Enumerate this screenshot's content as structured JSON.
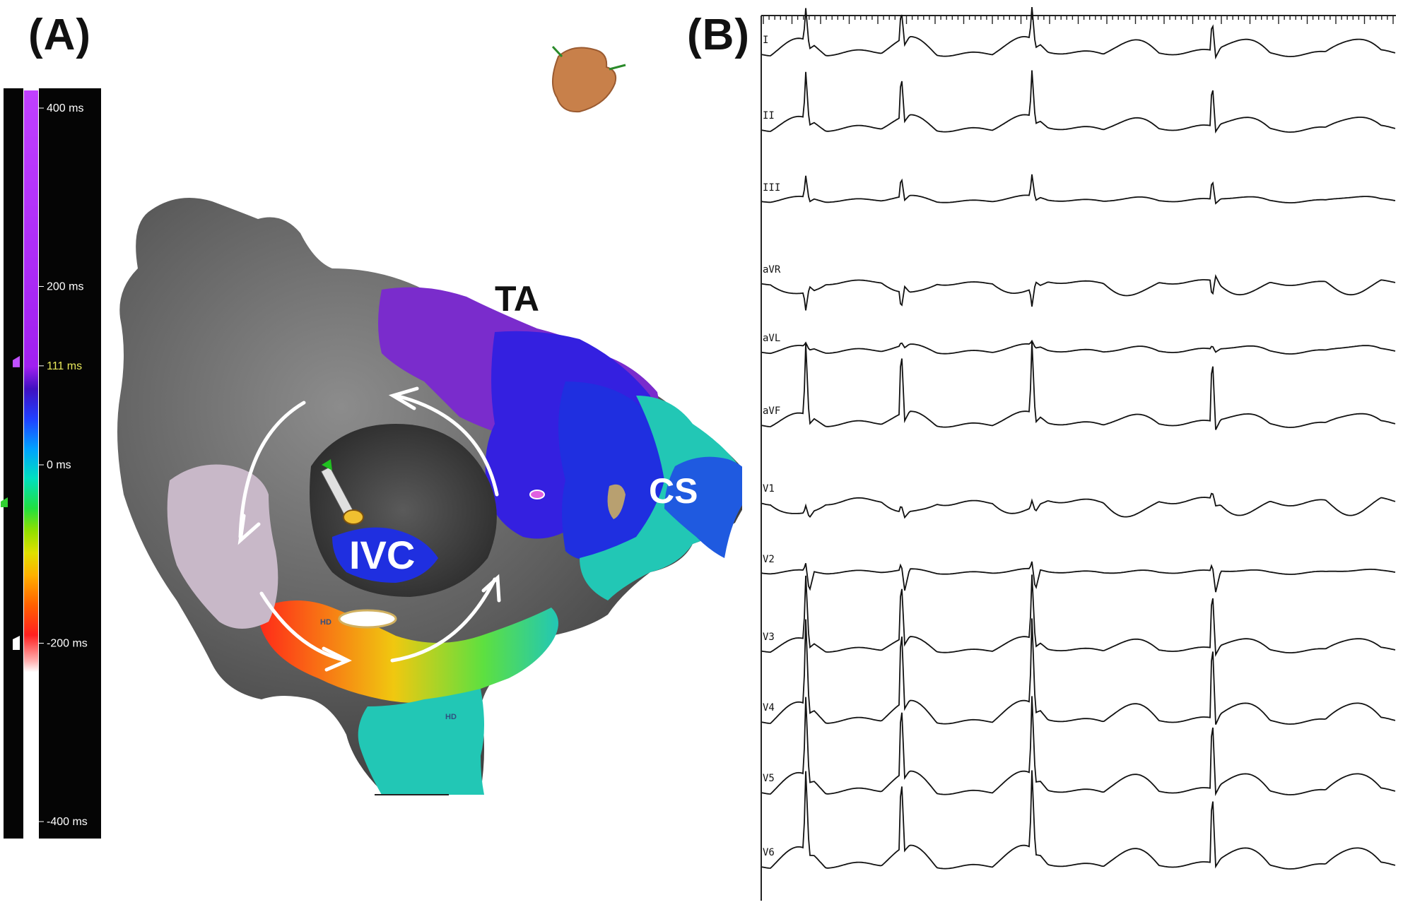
{
  "panels": {
    "a_label": "(A)",
    "b_label": "(B)"
  },
  "activation_scale": {
    "labels": [
      {
        "text": "400 ms",
        "value": 400
      },
      {
        "text": "200 ms",
        "value": 200
      },
      {
        "text": "111 ms",
        "value": 111
      },
      {
        "text": "0 ms",
        "value": 0
      },
      {
        "text": "-200 ms",
        "value": -200
      },
      {
        "text": "-400 ms",
        "value": -400
      }
    ],
    "current_value_ms": 111,
    "gradient_colors": [
      "#ffffff",
      "#ffb0b0",
      "#ff2020",
      "#ff6000",
      "#ffb000",
      "#e0e000",
      "#90e000",
      "#20e040",
      "#00e0c0",
      "#00a0ff",
      "#2040ff",
      "#4010c0",
      "#a020f0",
      "#c040ff"
    ]
  },
  "map": {
    "labels": {
      "ta": "TA",
      "cs": "CS",
      "ivc": "IVC",
      "hd1": "HD",
      "hd2": "HD"
    },
    "colors": {
      "shell": "#5a5a5a",
      "shell_light": "#8a8a8a",
      "purple": "#7a2ccc",
      "blue": "#1f2fe0",
      "teal": "#22c7b5",
      "red": "#ff2a18",
      "yellow": "#f0c810",
      "orange": "#c8804a"
    }
  },
  "ecg": {
    "leads": [
      "I",
      "II",
      "III",
      "aVR",
      "aVL",
      "aVF",
      "V1",
      "V2",
      "V3",
      "V4",
      "V5",
      "V6"
    ]
  }
}
